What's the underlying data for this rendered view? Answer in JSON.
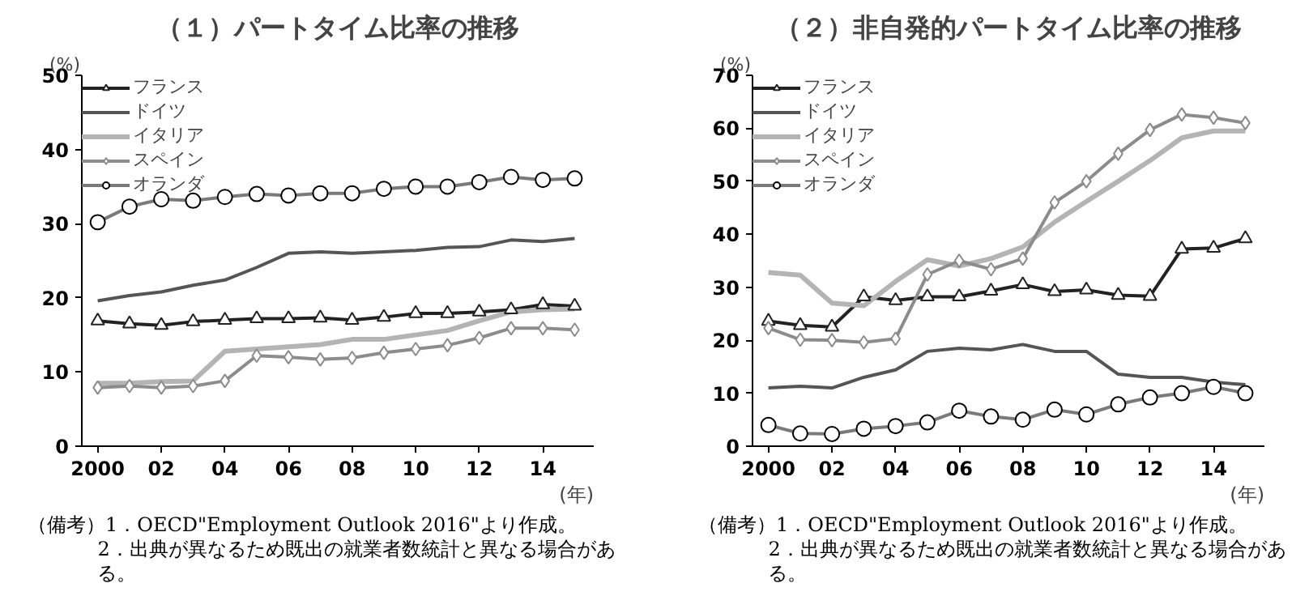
{
  "chart_data": [
    {
      "type": "line",
      "title": "（１）パートタイム比率の推移",
      "ylabel": "(%)",
      "xlabel": "(年)",
      "x": [
        2000,
        2001,
        2002,
        2003,
        2004,
        2005,
        2006,
        2007,
        2008,
        2009,
        2010,
        2011,
        2012,
        2013,
        2014,
        2015
      ],
      "xlim": [
        1999.5,
        2015.6
      ],
      "xticks": [
        {
          "value": 2000,
          "label": "2000"
        },
        {
          "value": 2002,
          "label": "02"
        },
        {
          "value": 2004,
          "label": "04"
        },
        {
          "value": 2006,
          "label": "06"
        },
        {
          "value": 2008,
          "label": "08"
        },
        {
          "value": 2010,
          "label": "10"
        },
        {
          "value": 2012,
          "label": "12"
        },
        {
          "value": 2014,
          "label": "14"
        }
      ],
      "ylim": [
        0,
        50
      ],
      "yticks": [
        0,
        10,
        20,
        30,
        40,
        50
      ],
      "grid": false,
      "legend": "top left",
      "series": [
        {
          "name": "フランス",
          "color": "#222222",
          "marker": "triangle",
          "values": [
            16.9,
            16.5,
            16.3,
            16.8,
            17.0,
            17.2,
            17.2,
            17.3,
            17.0,
            17.4,
            17.9,
            17.9,
            18.1,
            18.4,
            19.1,
            18.9
          ]
        },
        {
          "name": "ドイツ",
          "color": "#555555",
          "marker": "none",
          "values": [
            19.6,
            20.3,
            20.8,
            21.7,
            22.4,
            24.1,
            26.0,
            26.2,
            26.0,
            26.2,
            26.4,
            26.8,
            26.9,
            27.8,
            27.6,
            28.0
          ]
        },
        {
          "name": "イタリア",
          "color": "#b4b4b4",
          "marker": "none",
          "values": [
            8.5,
            8.5,
            8.7,
            8.8,
            12.8,
            13.1,
            13.4,
            13.7,
            14.4,
            14.4,
            15.0,
            15.6,
            16.9,
            18.1,
            18.4,
            18.5
          ]
        },
        {
          "name": "スペイン",
          "color": "#8c8c8c",
          "marker": "diamond",
          "values": [
            7.9,
            8.1,
            7.9,
            8.1,
            8.8,
            12.2,
            12.0,
            11.7,
            11.9,
            12.6,
            13.1,
            13.6,
            14.6,
            15.9,
            15.9,
            15.7
          ]
        },
        {
          "name": "オランダ",
          "color": "#7a7a7a",
          "marker": "circle",
          "values": [
            30.2,
            32.3,
            33.3,
            33.1,
            33.6,
            34.0,
            33.8,
            34.1,
            34.1,
            34.7,
            35.0,
            35.0,
            35.6,
            36.3,
            35.9,
            36.1
          ]
        }
      ],
      "annotations": [
        "（備考）1．OECD\"Employment Outlook 2016\"より作成。",
        "2．出典が異なるため既出の就業者数統計と異なる場合がある。"
      ]
    },
    {
      "type": "line",
      "title": "（２）非自発的パートタイム比率の推移",
      "ylabel": "(%)",
      "xlabel": "(年)",
      "x": [
        2000,
        2001,
        2002,
        2003,
        2004,
        2005,
        2006,
        2007,
        2008,
        2009,
        2010,
        2011,
        2012,
        2013,
        2014,
        2015
      ],
      "xlim": [
        1999.5,
        2015.6
      ],
      "xticks": [
        {
          "value": 2000,
          "label": "2000"
        },
        {
          "value": 2002,
          "label": "02"
        },
        {
          "value": 2004,
          "label": "04"
        },
        {
          "value": 2006,
          "label": "06"
        },
        {
          "value": 2008,
          "label": "08"
        },
        {
          "value": 2010,
          "label": "10"
        },
        {
          "value": 2012,
          "label": "12"
        },
        {
          "value": 2014,
          "label": "14"
        }
      ],
      "ylim": [
        0,
        70
      ],
      "yticks": [
        0,
        10,
        20,
        30,
        40,
        50,
        60,
        70
      ],
      "grid": false,
      "legend": "top left",
      "series": [
        {
          "name": "フランス",
          "color": "#222222",
          "marker": "triangle",
          "values": [
            23.6,
            22.8,
            22.5,
            28.2,
            27.5,
            28.2,
            28.2,
            29.3,
            30.5,
            29.2,
            29.5,
            28.5,
            28.3,
            37.2,
            37.4,
            39.2
          ]
        },
        {
          "name": "ドイツ",
          "color": "#555555",
          "marker": "none",
          "values": [
            11.0,
            11.3,
            11.0,
            13.0,
            14.4,
            17.9,
            18.5,
            18.2,
            19.2,
            17.9,
            17.9,
            13.6,
            13.0,
            13.0,
            12.1,
            11.6
          ]
        },
        {
          "name": "イタリア",
          "color": "#b4b4b4",
          "marker": "none",
          "values": [
            32.8,
            32.3,
            27.0,
            26.5,
            31.1,
            35.2,
            34.0,
            35.4,
            37.6,
            42.3,
            46.2,
            50.0,
            53.9,
            58.2,
            59.5,
            59.5
          ]
        },
        {
          "name": "スペイン",
          "color": "#8c8c8c",
          "marker": "diamond",
          "values": [
            22.3,
            20.1,
            20.0,
            19.6,
            20.3,
            32.4,
            35.0,
            33.4,
            35.4,
            46.0,
            50.0,
            55.2,
            59.7,
            62.6,
            62.0,
            61.0
          ]
        },
        {
          "name": "オランダ",
          "color": "#7a7a7a",
          "marker": "circle",
          "values": [
            4.0,
            2.4,
            2.3,
            3.3,
            3.8,
            4.5,
            6.7,
            5.6,
            5.0,
            6.9,
            6.0,
            7.9,
            9.2,
            10.0,
            11.2,
            10.0
          ]
        }
      ],
      "annotations": [
        "（備考）1．OECD\"Employment Outlook 2016\"より作成。",
        "2．出典が異なるため既出の就業者数統計と異なる場合がある。"
      ]
    }
  ]
}
